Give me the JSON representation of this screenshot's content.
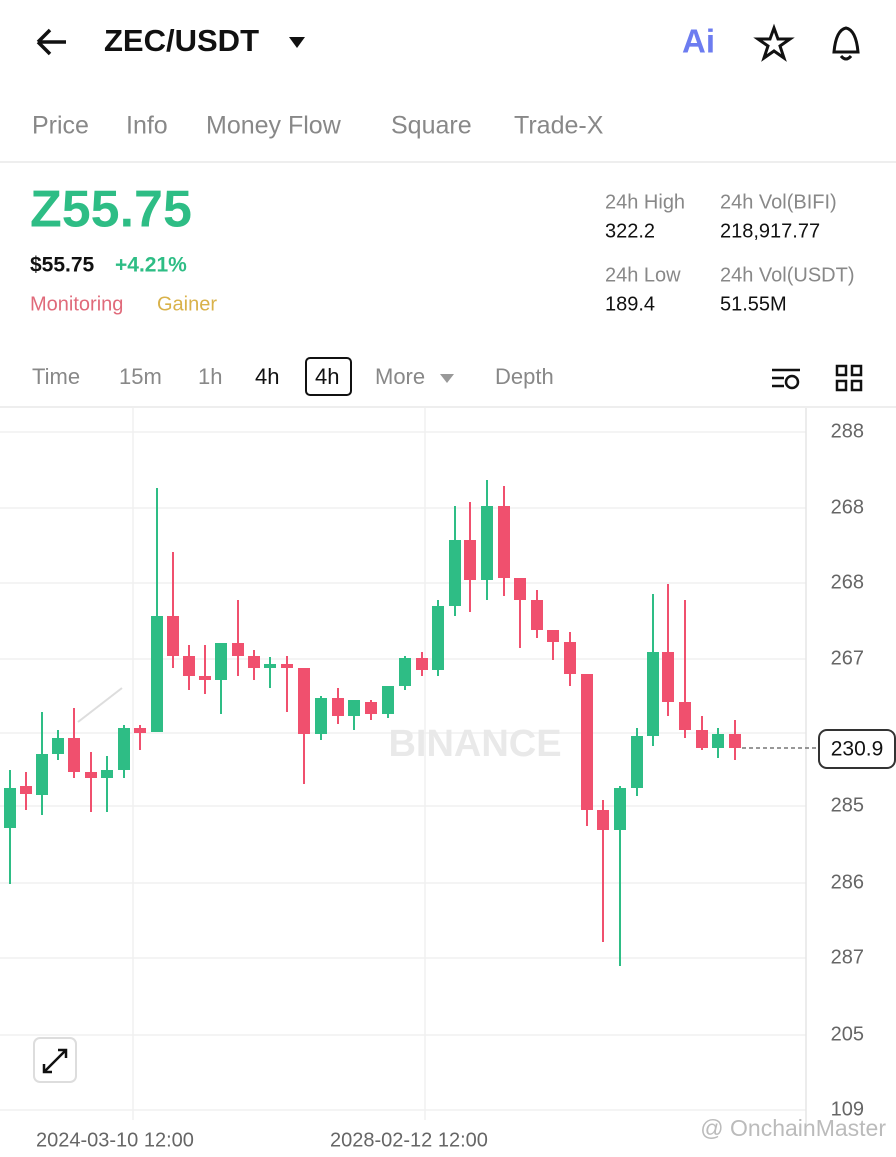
{
  "header": {
    "title": "ZEC/USDT",
    "ai": "Ai"
  },
  "tabs": [
    "Price",
    "Info",
    "Money Flow",
    "Square",
    "Trade-X"
  ],
  "price": {
    "main": "Z55.75",
    "usd": "$55.75",
    "change": "+4.21%",
    "tags": [
      "Monitoring",
      "Gainer"
    ]
  },
  "stats": [
    {
      "label": "24h High",
      "value": "322.2"
    },
    {
      "label": "24h Vol(BIFI)",
      "value": "218,917.77"
    },
    {
      "label": "24h Low",
      "value": "189.4"
    },
    {
      "label": "24h Vol(USDT)",
      "value": "51.55M"
    }
  ],
  "intervals": [
    "Time",
    "15m",
    "1h",
    "4h",
    "4h",
    "More",
    "Depth"
  ],
  "chart": {
    "y_labels": [
      "288",
      "268",
      "268",
      "267",
      "285",
      "286",
      "287",
      "205",
      "109"
    ],
    "x_labels": [
      "2024-03-10 12:00",
      "2028-02-12 12:00"
    ],
    "current_price": "230.9",
    "watermark": "BINANCE",
    "credit": "@ OnchainMaster"
  }
}
